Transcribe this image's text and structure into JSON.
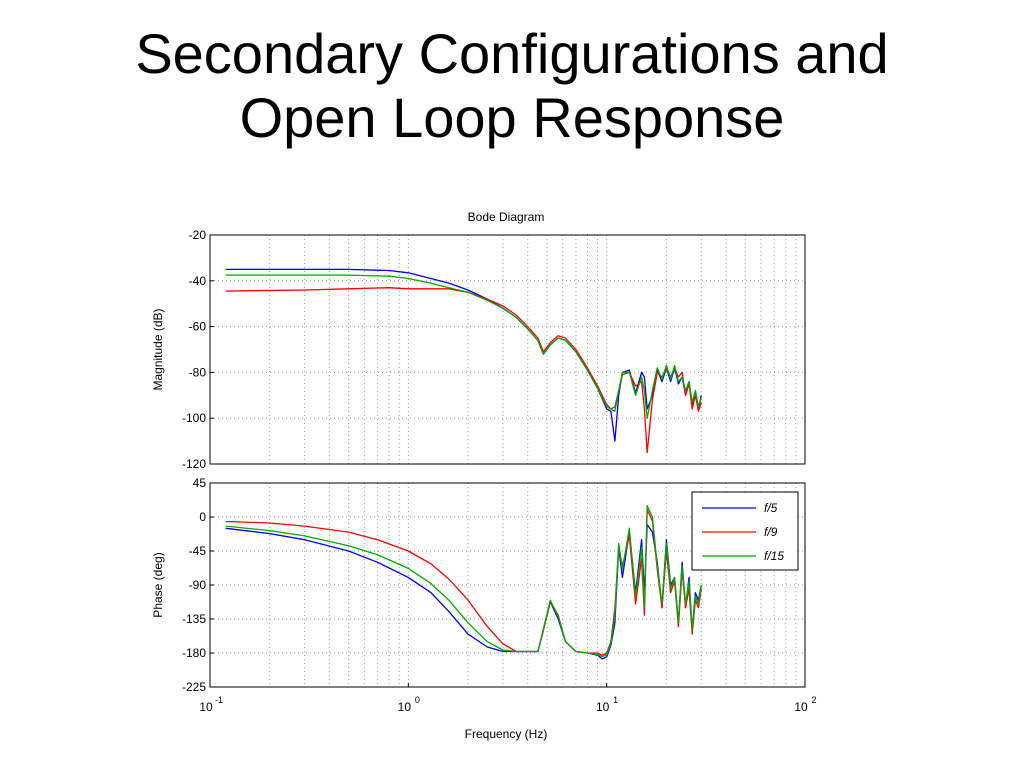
{
  "slide": {
    "title_line1": "Secondary Configurations and",
    "title_line2": "Open Loop Response"
  },
  "chart_data": {
    "type": "line",
    "title": "Bode Diagram",
    "xlabel": "Frequency  (Hz)",
    "xscale": "log",
    "xlim": [
      0.1,
      100
    ],
    "x_ticks": [
      {
        "base": "10",
        "exp": "-1"
      },
      {
        "base": "10",
        "exp": "0"
      },
      {
        "base": "10",
        "exp": "1"
      },
      {
        "base": "10",
        "exp": "2"
      }
    ],
    "grid": true,
    "legend_position": "top-right of phase plot",
    "colors": {
      "f5": "#0000ff",
      "f9": "#ff0000",
      "f15": "#00aa00"
    },
    "legend": [
      "f/5",
      "f/9",
      "f/15"
    ],
    "magnitude": {
      "ylabel": "Magnitude (dB)",
      "ylim": [
        -120,
        -20
      ],
      "y_ticks": [
        "-20",
        "-40",
        "-60",
        "-80",
        "-100",
        "-120"
      ],
      "series": [
        {
          "name": "f/5",
          "x": [
            0.12,
            0.3,
            0.5,
            0.8,
            1,
            1.3,
            1.6,
            2,
            2.5,
            3,
            3.5,
            4,
            4.5,
            4.8,
            5.2,
            5.7,
            6.2,
            7,
            8,
            9,
            10,
            10.5,
            11,
            11.5,
            12,
            13,
            14,
            15,
            15.5,
            16,
            17,
            18,
            19,
            20,
            21,
            22,
            23,
            24,
            25,
            26,
            27,
            28,
            29,
            30
          ],
          "y": [
            -35,
            -35,
            -35,
            -35.5,
            -36.5,
            -39,
            -41,
            -44,
            -48,
            -52,
            -56,
            -61,
            -66,
            -72,
            -68,
            -65,
            -66,
            -71,
            -79,
            -87,
            -96,
            -97,
            -110,
            -90,
            -80,
            -79,
            -89,
            -80,
            -82,
            -96,
            -90,
            -79,
            -84,
            -78,
            -84,
            -78,
            -85,
            -82,
            -90,
            -84,
            -94,
            -88,
            -96,
            -90
          ]
        },
        {
          "name": "f/9",
          "x": [
            0.12,
            0.3,
            0.5,
            0.8,
            1,
            1.3,
            1.6,
            2,
            2.5,
            3,
            3.5,
            4,
            4.5,
            4.8,
            5.2,
            5.7,
            6.2,
            7,
            8,
            9,
            10,
            10.5,
            11,
            11.5,
            12,
            13,
            14,
            15,
            15.5,
            16,
            17,
            18,
            19,
            20,
            21,
            22,
            23,
            24,
            25,
            26,
            27,
            28,
            29,
            30
          ],
          "y": [
            -44.5,
            -44,
            -43.5,
            -43,
            -43.5,
            -43.5,
            -43.5,
            -45,
            -48,
            -51,
            -55,
            -60,
            -65,
            -71,
            -67,
            -64,
            -65,
            -70,
            -78,
            -86,
            -94,
            -96,
            -95,
            -88,
            -81,
            -80,
            -86,
            -84,
            -96,
            -115,
            -92,
            -80,
            -82,
            -78,
            -82,
            -78,
            -82,
            -80,
            -90,
            -85,
            -96,
            -90,
            -97,
            -93
          ]
        },
        {
          "name": "f/15",
          "x": [
            0.12,
            0.3,
            0.5,
            0.8,
            1,
            1.3,
            1.6,
            2,
            2.5,
            3,
            3.5,
            4,
            4.5,
            4.8,
            5.2,
            5.7,
            6.2,
            7,
            8,
            9,
            10,
            10.5,
            11,
            11.5,
            12,
            13,
            14,
            15,
            15.5,
            16,
            17,
            18,
            19,
            20,
            21,
            22,
            23,
            24,
            25,
            26,
            27,
            28,
            29,
            30
          ],
          "y": [
            -37.5,
            -37.5,
            -37.5,
            -38,
            -39,
            -41,
            -43,
            -45,
            -48.5,
            -52,
            -56,
            -61,
            -66,
            -72,
            -68,
            -65,
            -66,
            -71,
            -79,
            -87,
            -95,
            -96,
            -97,
            -88,
            -80,
            -80,
            -90,
            -82,
            -88,
            -100,
            -88,
            -78,
            -83,
            -77,
            -83,
            -77,
            -84,
            -82,
            -88,
            -84,
            -93,
            -88,
            -95,
            -91
          ]
        }
      ]
    },
    "phase": {
      "ylabel": "Phase (deg)",
      "ylim": [
        -225,
        45
      ],
      "y_ticks": [
        "45",
        "0",
        "-45",
        "-90",
        "-135",
        "-180",
        "-225"
      ],
      "series": [
        {
          "name": "f/5",
          "x": [
            0.12,
            0.2,
            0.3,
            0.5,
            0.7,
            1,
            1.3,
            1.6,
            2,
            2.5,
            3,
            3.5,
            4,
            4.5,
            4.8,
            5.2,
            5.7,
            6.2,
            7,
            8,
            9,
            9.5,
            10,
            10.5,
            11,
            11.5,
            12,
            13,
            14,
            15,
            15.5,
            16,
            17,
            18,
            19,
            20,
            21,
            22,
            23,
            24,
            25,
            26,
            27,
            28,
            29,
            30
          ],
          "y": [
            -15,
            -22,
            -30,
            -45,
            -60,
            -80,
            -100,
            -125,
            -155,
            -172,
            -178,
            -178,
            -178,
            -178,
            -150,
            -112,
            -135,
            -165,
            -178,
            -180,
            -183,
            -188,
            -185,
            -170,
            -140,
            -40,
            -80,
            -20,
            -100,
            -30,
            -100,
            -10,
            -20,
            -60,
            -120,
            -30,
            -90,
            -80,
            -140,
            -60,
            -120,
            -80,
            -150,
            -100,
            -110,
            -90
          ]
        },
        {
          "name": "f/9",
          "x": [
            0.12,
            0.2,
            0.3,
            0.5,
            0.7,
            1,
            1.3,
            1.6,
            2,
            2.5,
            3,
            3.5,
            4,
            4.5,
            4.8,
            5.2,
            5.7,
            6.2,
            7,
            8,
            9,
            9.5,
            10,
            10.5,
            11,
            11.5,
            12,
            13,
            14,
            15,
            15.5,
            16,
            17,
            18,
            19,
            20,
            21,
            22,
            23,
            24,
            25,
            26,
            27,
            28,
            29,
            30
          ],
          "y": [
            -6,
            -8,
            -12,
            -20,
            -30,
            -45,
            -62,
            -82,
            -110,
            -145,
            -168,
            -178,
            -178,
            -178,
            -150,
            -112,
            -130,
            -165,
            -178,
            -180,
            -180,
            -183,
            -180,
            -165,
            -120,
            -40,
            -65,
            -25,
            -115,
            -55,
            -130,
            10,
            -5,
            -70,
            -120,
            -45,
            -100,
            -85,
            -145,
            -70,
            -120,
            -95,
            -155,
            -110,
            -120,
            -95
          ]
        },
        {
          "name": "f/15",
          "x": [
            0.12,
            0.2,
            0.3,
            0.5,
            0.7,
            1,
            1.3,
            1.6,
            2,
            2.5,
            3,
            3.5,
            4,
            4.5,
            4.8,
            5.2,
            5.7,
            6.2,
            7,
            8,
            9,
            9.5,
            10,
            10.5,
            11,
            11.5,
            12,
            13,
            14,
            15,
            15.5,
            16,
            17,
            18,
            19,
            20,
            21,
            22,
            23,
            24,
            25,
            26,
            27,
            28,
            29,
            30
          ],
          "y": [
            -12,
            -18,
            -25,
            -38,
            -50,
            -68,
            -88,
            -110,
            -140,
            -165,
            -176,
            -178,
            -178,
            -178,
            -148,
            -110,
            -132,
            -165,
            -178,
            -180,
            -182,
            -185,
            -182,
            -168,
            -130,
            -35,
            -70,
            -15,
            -105,
            -40,
            -120,
            15,
            0,
            -65,
            -115,
            -35,
            -95,
            -80,
            -140,
            -65,
            -115,
            -85,
            -150,
            -105,
            -115,
            -90
          ]
        }
      ]
    }
  }
}
